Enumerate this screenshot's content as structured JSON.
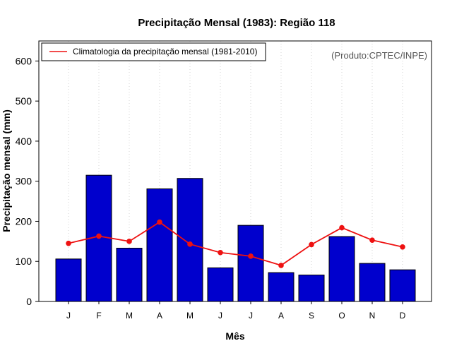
{
  "chart_data": {
    "type": "bar",
    "title": "Precipitação Mensal (1983): Região 118",
    "xlabel": "Mês",
    "ylabel": "Precipitação mensal (mm)",
    "ylim": [
      0,
      650
    ],
    "yticks": [
      0,
      100,
      200,
      300,
      400,
      500,
      600
    ],
    "grid": "vertical dotted",
    "credit": "(Produto:CPTEC/INPE)",
    "categories": [
      "J",
      "F",
      "M",
      "A",
      "M",
      "J",
      "J",
      "A",
      "S",
      "O",
      "N",
      "D"
    ],
    "series": [
      {
        "name": "Precipitação mensal 1983",
        "kind": "bar",
        "color": "#0000cd",
        "values": [
          106,
          315,
          133,
          281,
          307,
          84,
          190,
          72,
          66,
          162,
          95,
          79
        ]
      },
      {
        "name": "Climatologia da precipitação mensal (1981-2010)",
        "kind": "line",
        "color": "#ee1111",
        "values": [
          145,
          163,
          150,
          198,
          143,
          122,
          113,
          90,
          142,
          184,
          153,
          136
        ]
      }
    ],
    "legend": {
      "position": "top-left",
      "entries": [
        "Climatologia da precipitação mensal (1981-2010)"
      ]
    }
  }
}
